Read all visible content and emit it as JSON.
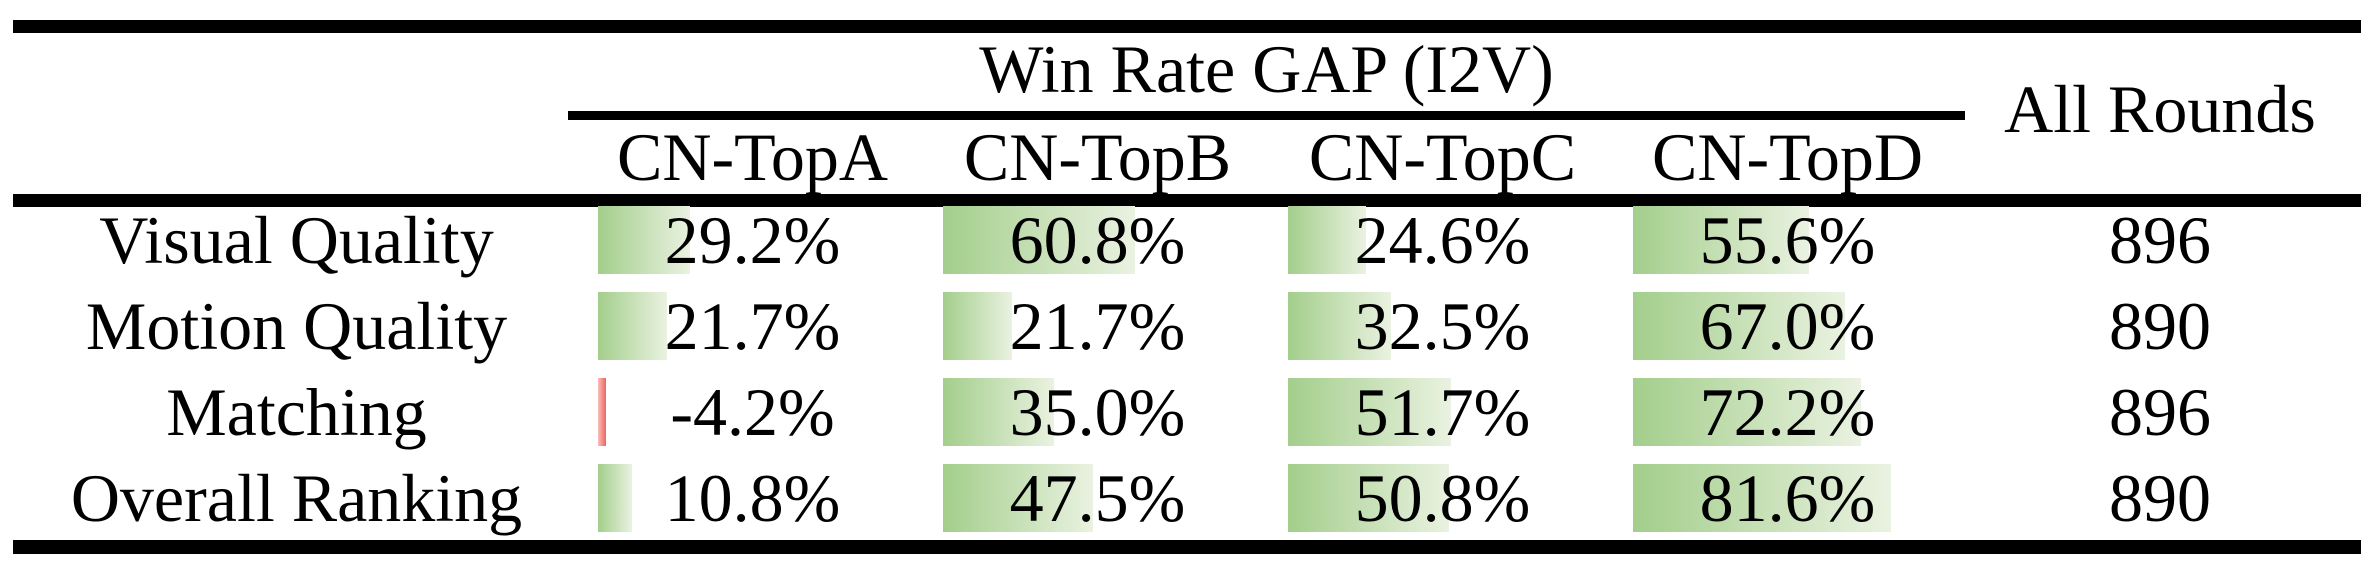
{
  "colors": {
    "bar_green_start": "#a3ce8b",
    "bar_green_end": "#eaf2e1",
    "bar_red_start": "#fbbdb9",
    "bar_red_end": "#ee6660",
    "rule_color": "#000000"
  },
  "table": {
    "group_header": "Win Rate GAP (I2V)",
    "all_rounds_header": "All Rounds",
    "columns": [
      "CN-TopA",
      "CN-TopB",
      "CN-TopC",
      "CN-TopD"
    ],
    "rows": [
      {
        "label": "Visual Quality",
        "cells": [
          {
            "text": "29.2%",
            "value": 29.2
          },
          {
            "text": "60.8%",
            "value": 60.8
          },
          {
            "text": "24.6%",
            "value": 24.6
          },
          {
            "text": "55.6%",
            "value": 55.6
          }
        ],
        "all_rounds": "896"
      },
      {
        "label": "Motion Quality",
        "cells": [
          {
            "text": "21.7%",
            "value": 21.7
          },
          {
            "text": "21.7%",
            "value": 21.7
          },
          {
            "text": "32.5%",
            "value": 32.5
          },
          {
            "text": "67.0%",
            "value": 67.0
          }
        ],
        "all_rounds": "890"
      },
      {
        "label": "Matching",
        "cells": [
          {
            "text": "-4.2%",
            "value": -4.2
          },
          {
            "text": "35.0%",
            "value": 35.0
          },
          {
            "text": "51.7%",
            "value": 51.7
          },
          {
            "text": "72.2%",
            "value": 72.2
          }
        ],
        "all_rounds": "896"
      },
      {
        "label": "Overall Ranking",
        "cells": [
          {
            "text": "10.8%",
            "value": 10.8
          },
          {
            "text": "47.5%",
            "value": 47.5
          },
          {
            "text": "50.8%",
            "value": 50.8
          },
          {
            "text": "81.6%",
            "value": 81.6
          }
        ],
        "all_rounds": "890"
      }
    ]
  },
  "chart_data": {
    "type": "table",
    "title": "Win Rate GAP (I2V)",
    "columns": [
      "CN-TopA",
      "CN-TopB",
      "CN-TopC",
      "CN-TopD",
      "All Rounds"
    ],
    "row_labels": [
      "Visual Quality",
      "Motion Quality",
      "Matching",
      "Overall Ranking"
    ],
    "win_rate_gap_percent": [
      [
        29.2,
        60.8,
        24.6,
        55.6
      ],
      [
        21.7,
        21.7,
        32.5,
        67.0
      ],
      [
        -4.2,
        35.0,
        51.7,
        72.2
      ],
      [
        10.8,
        47.5,
        50.8,
        81.6
      ]
    ],
    "all_rounds": [
      896,
      890,
      896,
      890
    ],
    "bar_style": "horizontal gradient data bars, green positive, red negative, width proportional to value"
  }
}
